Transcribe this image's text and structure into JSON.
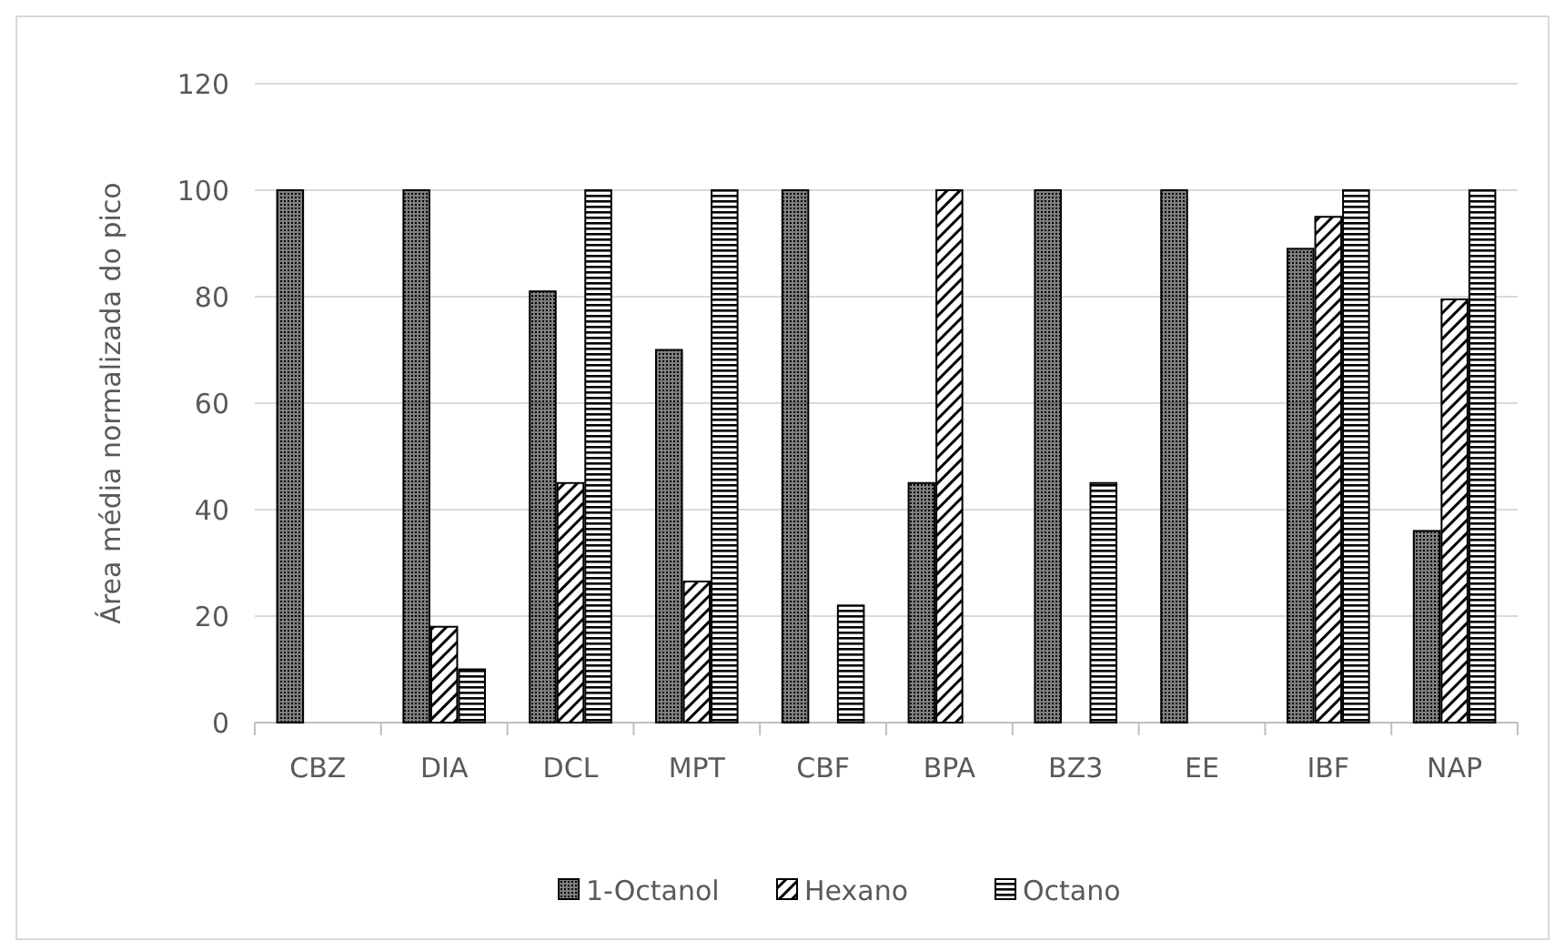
{
  "chart_data": {
    "type": "bar",
    "ylabel": "Área média normalizada do pico",
    "categories": [
      "CBZ",
      "DIA",
      "DCL",
      "MPT",
      "CBF",
      "BPA",
      "BZ3",
      "EE",
      "IBF",
      "NAP"
    ],
    "series": [
      {
        "name": "1-Octanol",
        "color": "#000000",
        "values": [
          100,
          100,
          81,
          70,
          100,
          45,
          100,
          100,
          89,
          36
        ]
      },
      {
        "name": "Hexano",
        "color": "#000000",
        "values": [
          null,
          18,
          45,
          26.5,
          null,
          100,
          null,
          null,
          95,
          79.5
        ]
      },
      {
        "name": "Octano",
        "color": "#000000",
        "values": [
          null,
          10,
          100,
          100,
          22,
          null,
          45,
          null,
          100,
          100
        ]
      }
    ],
    "ylim": [
      0,
      120
    ],
    "yticks": [
      0,
      20,
      40,
      60,
      80,
      100,
      120
    ],
    "grid": "y",
    "legend": "bottom"
  }
}
